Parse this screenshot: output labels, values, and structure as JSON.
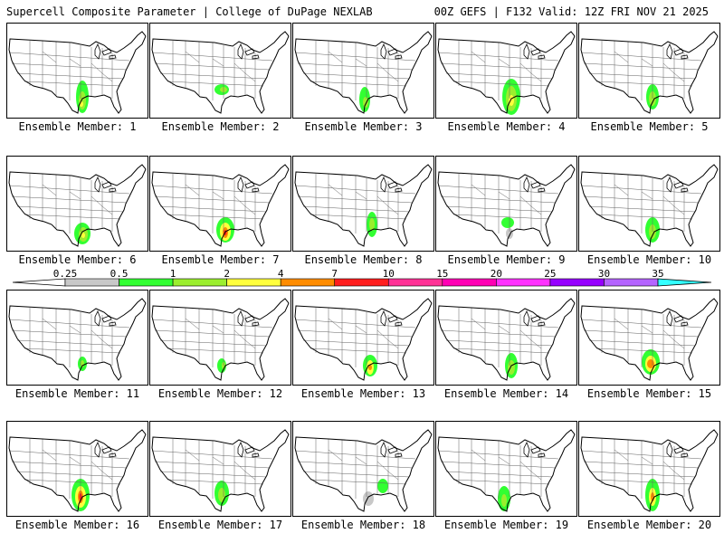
{
  "header": {
    "title": "Supercell Composite Parameter | College of DuPage NEXLAB",
    "run_info": "00Z GEFS | F132 Valid: 12Z FRI NOV 21 2025"
  },
  "members": [
    {
      "label": "Ensemble Member: 1"
    },
    {
      "label": "Ensemble Member: 2"
    },
    {
      "label": "Ensemble Member: 3"
    },
    {
      "label": "Ensemble Member: 4"
    },
    {
      "label": "Ensemble Member: 5"
    },
    {
      "label": "Ensemble Member: 6"
    },
    {
      "label": "Ensemble Member: 7"
    },
    {
      "label": "Ensemble Member: 8"
    },
    {
      "label": "Ensemble Member: 9"
    },
    {
      "label": "Ensemble Member: 10"
    },
    {
      "label": "Ensemble Member: 11"
    },
    {
      "label": "Ensemble Member: 12"
    },
    {
      "label": "Ensemble Member: 13"
    },
    {
      "label": "Ensemble Member: 14"
    },
    {
      "label": "Ensemble Member: 15"
    },
    {
      "label": "Ensemble Member: 16"
    },
    {
      "label": "Ensemble Member: 17"
    },
    {
      "label": "Ensemble Member: 18"
    },
    {
      "label": "Ensemble Member: 19"
    },
    {
      "label": "Ensemble Member: 20"
    }
  ],
  "colorbar": {
    "ticks": [
      "0.25",
      "0.5",
      "1",
      "2",
      "4",
      "7",
      "10",
      "15",
      "20",
      "25",
      "30",
      "35"
    ],
    "colors": [
      "#c8c8c8",
      "#32ff32",
      "#9bee2e",
      "#ffff3c",
      "#ff8c00",
      "#ff1e1e",
      "#ff3296",
      "#ff00b4",
      "#ff32ff",
      "#9600ff",
      "#b464ff",
      "#32ffff"
    ],
    "under_color": "#ffffff",
    "over_color": "#32ffff"
  }
}
